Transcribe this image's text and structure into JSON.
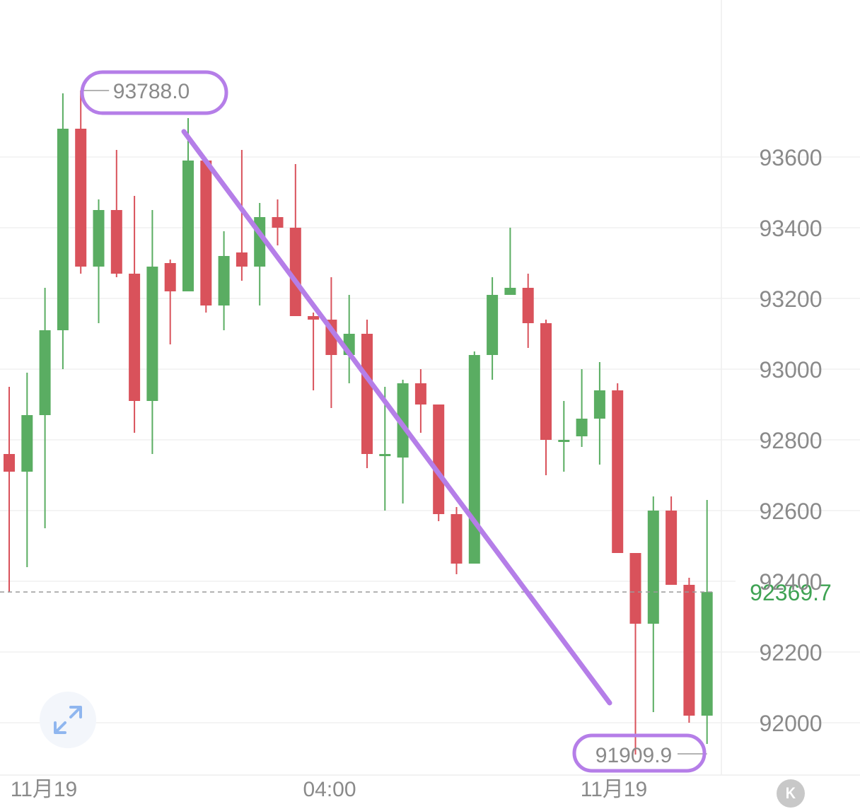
{
  "chart_data": {
    "type": "candlestick",
    "title": "",
    "ylabel": "",
    "xlabel": "",
    "ylim": [
      91880,
      94200
    ],
    "y_ticks": [
      92000,
      92200,
      92400,
      92600,
      92800,
      93000,
      93200,
      93400,
      93600
    ],
    "x_labels": [
      "11月19",
      "04:00",
      "11月19"
    ],
    "current_price": {
      "value": 92369.7,
      "label": "92369.7"
    },
    "annotations": {
      "high": {
        "value": 93788.0,
        "label": "93788.0"
      },
      "low": {
        "value": 91909.9,
        "label": "91909.9"
      }
    },
    "colors": {
      "up": "#5aad62",
      "down": "#d9525b",
      "current_price": "#3fa354",
      "annotation": "#b57ee8"
    },
    "candles": [
      {
        "open": 92760,
        "close": 92710,
        "high": 92950,
        "low": 92370
      },
      {
        "open": 92710,
        "close": 92870,
        "high": 92990,
        "low": 92440
      },
      {
        "open": 92870,
        "close": 93110,
        "high": 93230,
        "low": 92550
      },
      {
        "open": 93110,
        "close": 93680,
        "high": 93780,
        "low": 93000
      },
      {
        "open": 93680,
        "close": 93290,
        "high": 93788,
        "low": 93270
      },
      {
        "open": 93290,
        "close": 93450,
        "high": 93480,
        "low": 93130
      },
      {
        "open": 93450,
        "close": 93270,
        "high": 93620,
        "low": 93260
      },
      {
        "open": 93270,
        "close": 92910,
        "high": 93490,
        "low": 92820
      },
      {
        "open": 92910,
        "close": 93290,
        "high": 93450,
        "low": 92760
      },
      {
        "open": 93300,
        "close": 93220,
        "high": 93310,
        "low": 93070
      },
      {
        "open": 93220,
        "close": 93590,
        "high": 93710,
        "low": 93220
      },
      {
        "open": 93590,
        "close": 93180,
        "high": 93590,
        "low": 93160
      },
      {
        "open": 93180,
        "close": 93320,
        "high": 93390,
        "low": 93110
      },
      {
        "open": 93330,
        "close": 93290,
        "high": 93620,
        "low": 93250
      },
      {
        "open": 93290,
        "close": 93430,
        "high": 93470,
        "low": 93180
      },
      {
        "open": 93430,
        "close": 93400,
        "high": 93480,
        "low": 93350
      },
      {
        "open": 93400,
        "close": 93150,
        "high": 93580,
        "low": 93150
      },
      {
        "open": 93150,
        "close": 93140,
        "high": 93160,
        "low": 92940
      },
      {
        "open": 93140,
        "close": 93040,
        "high": 93260,
        "low": 92890
      },
      {
        "open": 93040,
        "close": 93100,
        "high": 93210,
        "low": 92960
      },
      {
        "open": 93100,
        "close": 92760,
        "high": 93140,
        "low": 92720
      },
      {
        "open": 92760,
        "close": 92760,
        "high": 92950,
        "low": 92600
      },
      {
        "open": 92750,
        "close": 92960,
        "high": 92970,
        "low": 92620
      },
      {
        "open": 92960,
        "close": 92900,
        "high": 93000,
        "low": 92820
      },
      {
        "open": 92900,
        "close": 92590,
        "high": 92900,
        "low": 92570
      },
      {
        "open": 92590,
        "close": 92450,
        "high": 92610,
        "low": 92420
      },
      {
        "open": 92450,
        "close": 93040,
        "high": 93050,
        "low": 92450
      },
      {
        "open": 93040,
        "close": 93210,
        "high": 93260,
        "low": 92970
      },
      {
        "open": 93210,
        "close": 93230,
        "high": 93400,
        "low": 93210
      },
      {
        "open": 93230,
        "close": 93130,
        "high": 93270,
        "low": 93060
      },
      {
        "open": 93130,
        "close": 92800,
        "high": 93140,
        "low": 92700
      },
      {
        "open": 92800,
        "close": 92800,
        "high": 92910,
        "low": 92710
      },
      {
        "open": 92810,
        "close": 92860,
        "high": 93000,
        "low": 92780
      },
      {
        "open": 92860,
        "close": 92940,
        "high": 93020,
        "low": 92730
      },
      {
        "open": 92940,
        "close": 92480,
        "high": 92960,
        "low": 92480
      },
      {
        "open": 92480,
        "close": 92280,
        "high": 92480,
        "low": 91909.9
      },
      {
        "open": 92280,
        "close": 92600,
        "high": 92640,
        "low": 92030
      },
      {
        "open": 92600,
        "close": 92390,
        "high": 92640,
        "low": 92390
      },
      {
        "open": 92390,
        "close": 92020,
        "high": 92410,
        "low": 92000
      },
      {
        "open": 92020,
        "close": 92369.7,
        "high": 92630,
        "low": 91940
      }
    ]
  }
}
